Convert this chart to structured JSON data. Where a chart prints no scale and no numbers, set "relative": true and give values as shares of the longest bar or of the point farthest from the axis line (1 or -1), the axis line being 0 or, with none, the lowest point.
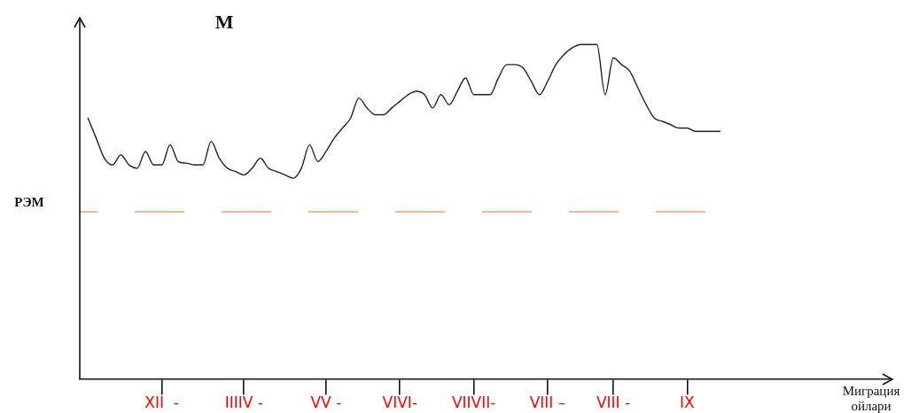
{
  "chart_data": {
    "type": "line",
    "title": "М",
    "xlabel": "Миграция ойлари",
    "relative": true,
    "categories": [
      null,
      null,
      null,
      null,
      null,
      null,
      null,
      null,
      null,
      null,
      "XII  -",
      null,
      null,
      null,
      null,
      null,
      null,
      null,
      null,
      null,
      "IIIIV -",
      null,
      null,
      null,
      null,
      null,
      null,
      null,
      null,
      null,
      "VV -",
      null,
      null,
      null,
      null,
      null,
      null,
      null,
      null,
      "VIVI-",
      null,
      null,
      null,
      null,
      null,
      null,
      null,
      null,
      "VIIVII-",
      null,
      null,
      null,
      null,
      null,
      null,
      null,
      null,
      "VIII –",
      null,
      null,
      null,
      null,
      null,
      null,
      null,
      "VIII -",
      null,
      null,
      null,
      null,
      null,
      null,
      null,
      null,
      "IX",
      null,
      null,
      null,
      null,
      null,
      null,
      null,
      null,
      null,
      null,
      null,
      null,
      null,
      null,
      null,
      null,
      null,
      null,
      null,
      null,
      null,
      null,
      null,
      null,
      null
    ],
    "series": [
      {
        "color": "#222222",
        "values": [
          null,
          0.78,
          0.72,
          0.66,
          0.64,
          0.67,
          0.64,
          0.63,
          0.68,
          0.64,
          0.64,
          0.7,
          0.65,
          0.645,
          0.64,
          0.64,
          0.71,
          0.66,
          0.63,
          0.62,
          0.61,
          0.63,
          0.66,
          0.63,
          0.62,
          0.61,
          0.6,
          0.63,
          0.7,
          0.65,
          0.68,
          0.72,
          0.75,
          0.78,
          0.84,
          0.81,
          0.79,
          0.79,
          0.81,
          0.83,
          0.85,
          0.86,
          0.85,
          0.81,
          0.85,
          0.82,
          0.86,
          0.9,
          0.85,
          0.85,
          0.85,
          0.9,
          0.94,
          0.94,
          0.93,
          0.89,
          0.85,
          0.89,
          0.94,
          0.97,
          0.99,
          1.0,
          1.0,
          1.0,
          0.85,
          0.96,
          0.94,
          0.92,
          0.87,
          0.82,
          0.78,
          0.77,
          0.76,
          0.75,
          0.75,
          0.74,
          0.74,
          0.74,
          0.74,
          null,
          null,
          null,
          null,
          null,
          null,
          null,
          null,
          null,
          null,
          null,
          null,
          null,
          null,
          null,
          null,
          null,
          null,
          null,
          null,
          null
        ]
      }
    ],
    "ref_lines": [
      {
        "axis": "y",
        "value": 0.5,
        "label": "РЭМ",
        "color": "#f4a06a",
        "line_style": "dashed"
      }
    ],
    "legend": false,
    "marker": "none",
    "line_style": "solid"
  }
}
